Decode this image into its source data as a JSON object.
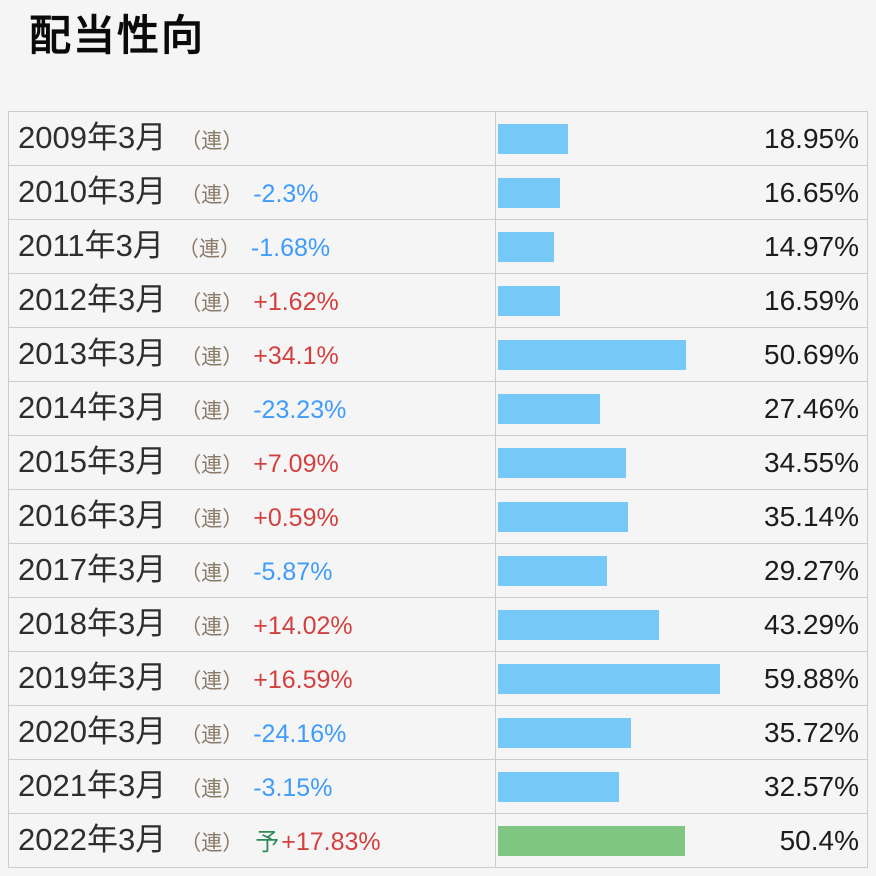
{
  "title": "配当性向",
  "colors": {
    "bar_blue": "#76c8f7",
    "bar_green": "#80c683",
    "change_up": "#d2413f",
    "change_down": "#3f9cf8",
    "consolidated_tag": "#8a7a68",
    "forecast_mark": "#2f8b57",
    "border": "#cccccc",
    "background": "#f5f5f6"
  },
  "chart_data": {
    "type": "bar",
    "orientation": "horizontal",
    "title": "配当性向",
    "unit": "%",
    "xlim": [
      0,
      62
    ],
    "grid": false,
    "legend": "none",
    "categories": [
      "2009年3月",
      "2010年3月",
      "2011年3月",
      "2012年3月",
      "2013年3月",
      "2014年3月",
      "2015年3月",
      "2016年3月",
      "2017年3月",
      "2018年3月",
      "2019年3月",
      "2020年3月",
      "2021年3月",
      "2022年3月"
    ],
    "values": [
      18.95,
      16.65,
      14.97,
      16.59,
      50.69,
      27.46,
      34.55,
      35.14,
      29.27,
      43.29,
      59.88,
      35.72,
      32.57,
      50.4
    ],
    "rows": [
      {
        "label": "2009年3月",
        "tag": "（連）",
        "forecast": "",
        "change": "",
        "change_dir": "none",
        "value": 18.95,
        "value_label": "18.95%",
        "bar_color": "blue"
      },
      {
        "label": "2010年3月",
        "tag": "（連）",
        "forecast": "",
        "change": "-2.3%",
        "change_dir": "down",
        "value": 16.65,
        "value_label": "16.65%",
        "bar_color": "blue"
      },
      {
        "label": "2011年3月",
        "tag": "（連）",
        "forecast": "",
        "change": "-1.68%",
        "change_dir": "down",
        "value": 14.97,
        "value_label": "14.97%",
        "bar_color": "blue"
      },
      {
        "label": "2012年3月",
        "tag": "（連）",
        "forecast": "",
        "change": "+1.62%",
        "change_dir": "up",
        "value": 16.59,
        "value_label": "16.59%",
        "bar_color": "blue"
      },
      {
        "label": "2013年3月",
        "tag": "（連）",
        "forecast": "",
        "change": "+34.1%",
        "change_dir": "up",
        "value": 50.69,
        "value_label": "50.69%",
        "bar_color": "blue"
      },
      {
        "label": "2014年3月",
        "tag": "（連）",
        "forecast": "",
        "change": "-23.23%",
        "change_dir": "down",
        "value": 27.46,
        "value_label": "27.46%",
        "bar_color": "blue"
      },
      {
        "label": "2015年3月",
        "tag": "（連）",
        "forecast": "",
        "change": "+7.09%",
        "change_dir": "up",
        "value": 34.55,
        "value_label": "34.55%",
        "bar_color": "blue"
      },
      {
        "label": "2016年3月",
        "tag": "（連）",
        "forecast": "",
        "change": "+0.59%",
        "change_dir": "up",
        "value": 35.14,
        "value_label": "35.14%",
        "bar_color": "blue"
      },
      {
        "label": "2017年3月",
        "tag": "（連）",
        "forecast": "",
        "change": "-5.87%",
        "change_dir": "down",
        "value": 29.27,
        "value_label": "29.27%",
        "bar_color": "blue"
      },
      {
        "label": "2018年3月",
        "tag": "（連）",
        "forecast": "",
        "change": "+14.02%",
        "change_dir": "up",
        "value": 43.29,
        "value_label": "43.29%",
        "bar_color": "blue"
      },
      {
        "label": "2019年3月",
        "tag": "（連）",
        "forecast": "",
        "change": "+16.59%",
        "change_dir": "up",
        "value": 59.88,
        "value_label": "59.88%",
        "bar_color": "blue"
      },
      {
        "label": "2020年3月",
        "tag": "（連）",
        "forecast": "",
        "change": "-24.16%",
        "change_dir": "down",
        "value": 35.72,
        "value_label": "35.72%",
        "bar_color": "blue"
      },
      {
        "label": "2021年3月",
        "tag": "（連）",
        "forecast": "",
        "change": "-3.15%",
        "change_dir": "down",
        "value": 32.57,
        "value_label": "32.57%",
        "bar_color": "blue"
      },
      {
        "label": "2022年3月",
        "tag": "（連）",
        "forecast": "予",
        "change": "+17.83%",
        "change_dir": "up",
        "value": 50.4,
        "value_label": "50.4%",
        "bar_color": "green"
      }
    ]
  }
}
